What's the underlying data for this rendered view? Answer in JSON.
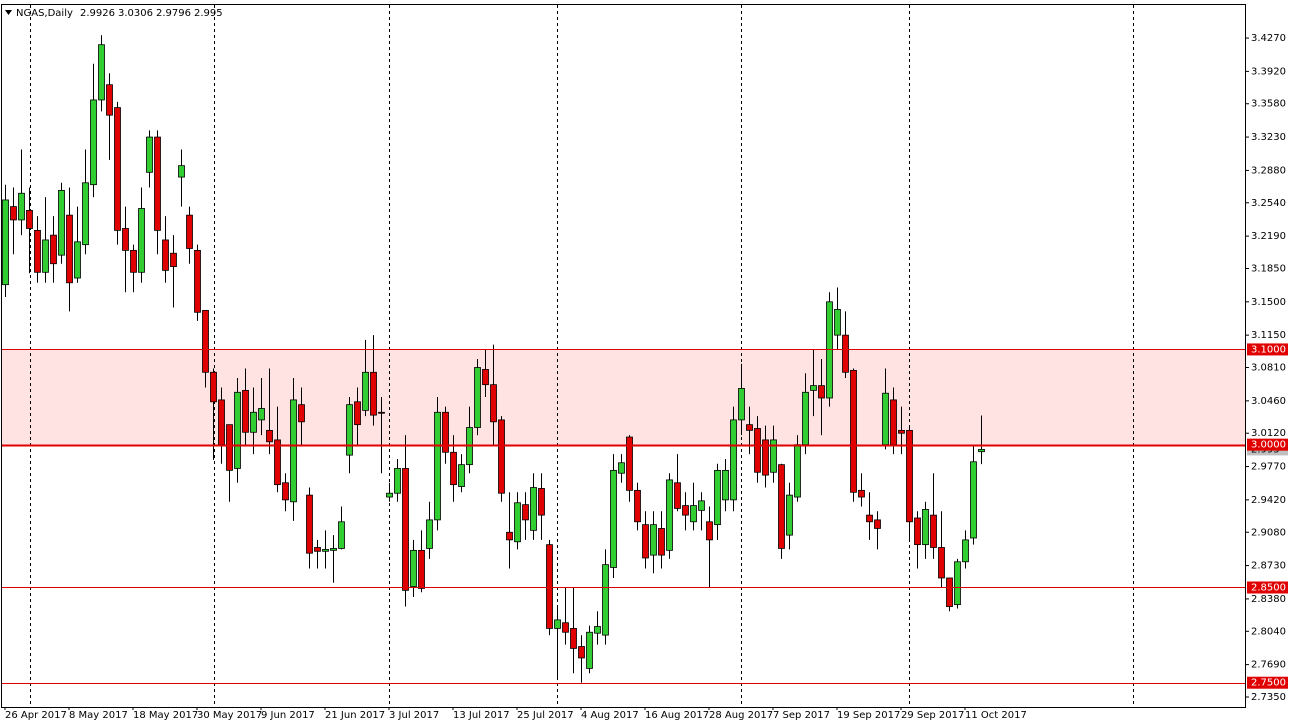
{
  "chart_data": {
    "type": "candlestick",
    "header_symbol": "NGAS,Daily",
    "categories": [
      "26 Apr 2017",
      null,
      null,
      null,
      null,
      null,
      null,
      null,
      "8 May 2017",
      null,
      null,
      null,
      null,
      null,
      null,
      null,
      "18 May 2017",
      null,
      null,
      null,
      null,
      null,
      null,
      null,
      "30 May 2017",
      null,
      null,
      null,
      null,
      null,
      null,
      null,
      "9 Jun 2017",
      null,
      null,
      null,
      null,
      null,
      null,
      null,
      "21 Jun 2017",
      null,
      null,
      null,
      null,
      null,
      null,
      null,
      "3 Jul 2017",
      null,
      null,
      null,
      null,
      null,
      null,
      null,
      "13 Jul 2017",
      null,
      null,
      null,
      null,
      null,
      null,
      null,
      "25 Jul 2017",
      null,
      null,
      null,
      null,
      null,
      null,
      null,
      "4 Aug 2017",
      null,
      null,
      null,
      null,
      null,
      null,
      null,
      "16 Aug 2017",
      null,
      null,
      null,
      null,
      null,
      null,
      null,
      "28 Aug 2017",
      null,
      null,
      null,
      null,
      null,
      null,
      null,
      "7 Sep 2017",
      null,
      null,
      null,
      null,
      null,
      null,
      null,
      "19 Sep 2017",
      null,
      null,
      null,
      null,
      null,
      null,
      null,
      "29 Sep 2017",
      null,
      null,
      null,
      null,
      null,
      null,
      null,
      "11 Oct 2017",
      null,
      null
    ],
    "open": [
      3.168,
      3.25,
      3.236,
      3.246,
      3.225,
      3.181,
      3.22,
      3.199,
      3.241,
      3.175,
      3.21,
      3.273,
      3.362,
      3.378,
      3.354,
      3.227,
      3.204,
      3.181,
      3.286,
      3.323,
      3.215,
      3.201,
      3.281,
      3.241,
      3.204,
      3.141,
      3.076,
      3.047,
      3.021,
      2.975,
      3.057,
      3.013,
      3.026,
      3.015,
      3.005,
      2.96,
      2.94,
      3.042,
      2.947,
      2.892,
      2.888,
      2.889,
      2.891,
      2.989,
      3.045,
      3.036,
      3.076,
      3.034,
      2.945,
      2.949,
      2.975,
      2.851,
      2.889,
      2.891,
      2.921,
      3.034,
      2.992,
      2.956,
      2.979,
      3.018,
      3.079,
      3.063,
      3.026,
      2.908,
      2.898,
      2.937,
      2.91,
      2.954,
      2.895,
      2.807,
      2.813,
      2.807,
      2.788,
      2.765,
      2.802,
      2.8,
      2.871,
      2.97,
      3.008,
      2.952,
      2.916,
      2.884,
      2.912,
      2.889,
      2.96,
      2.936,
      2.919,
      2.931,
      2.919,
      2.916,
      2.942,
      2.942,
      3.026,
      3.021,
      3.017,
      3.005,
      2.971,
      2.979,
      2.905,
      2.945,
      3.0,
      3.057,
      3.062,
      3.049,
      3.115,
      3.115,
      3.078,
      2.952,
      2.926,
      2.921,
      3.0,
      3.047,
      3.015,
      3.015,
      2.923,
      2.895,
      2.926,
      2.892,
      2.86,
      2.832,
      2.877,
      2.902,
      2.9926
    ],
    "high": [
      3.273,
      3.27,
      3.31,
      3.27,
      3.24,
      3.26,
      3.24,
      3.275,
      3.27,
      3.25,
      3.31,
      3.4,
      3.43,
      3.39,
      3.36,
      3.25,
      3.21,
      3.27,
      3.33,
      3.33,
      3.24,
      3.22,
      3.31,
      3.25,
      3.21,
      3.14,
      3.08,
      3.06,
      3.02,
      3.07,
      3.08,
      3.06,
      3.07,
      3.08,
      3.04,
      2.97,
      3.07,
      3.06,
      2.955,
      2.9,
      2.91,
      2.905,
      2.935,
      3.05,
      3.06,
      3.11,
      3.115,
      3.05,
      2.96,
      2.985,
      3.01,
      2.9,
      2.91,
      2.94,
      3.05,
      3.04,
      3.01,
      2.99,
      3.04,
      3.09,
      3.1,
      3.105,
      3.03,
      2.95,
      2.95,
      2.95,
      2.97,
      2.97,
      2.9,
      2.83,
      2.85,
      2.85,
      2.8,
      2.81,
      2.825,
      2.89,
      2.99,
      2.99,
      3.01,
      2.96,
      2.93,
      2.93,
      2.93,
      2.97,
      2.99,
      2.95,
      2.96,
      2.95,
      2.935,
      2.98,
      2.985,
      3.04,
      3.085,
      3.04,
      3.03,
      3.02,
      3.02,
      2.98,
      2.96,
      3.01,
      3.075,
      3.1,
      3.09,
      3.16,
      3.165,
      3.14,
      3.08,
      2.97,
      2.95,
      2.93,
      3.08,
      3.06,
      3.04,
      3.02,
      2.93,
      2.94,
      2.97,
      2.93,
      2.86,
      2.88,
      2.91,
      3.0,
      3.0306
    ],
    "low": [
      3.155,
      3.2,
      3.22,
      3.18,
      3.17,
      3.17,
      3.17,
      3.19,
      3.14,
      3.17,
      3.2,
      3.26,
      3.35,
      3.299,
      3.21,
      3.16,
      3.16,
      3.17,
      3.27,
      3.2,
      3.17,
      3.144,
      3.25,
      3.19,
      3.13,
      3.06,
      2.984,
      2.98,
      2.94,
      2.96,
      3.0,
      2.99,
      3.01,
      2.99,
      2.95,
      2.93,
      2.92,
      3.0,
      2.87,
      2.87,
      2.87,
      2.855,
      2.89,
      2.97,
      3.0,
      3.03,
      3.02,
      2.97,
      2.94,
      2.94,
      2.83,
      2.84,
      2.845,
      2.88,
      2.91,
      2.98,
      2.94,
      2.95,
      2.97,
      3.01,
      3.05,
      3.0,
      2.94,
      2.87,
      2.89,
      2.9,
      2.9,
      2.9,
      2.8,
      2.755,
      2.79,
      2.76,
      2.75,
      2.76,
      2.79,
      2.79,
      2.86,
      2.96,
      2.94,
      2.91,
      2.87,
      2.865,
      2.87,
      2.88,
      2.93,
      2.91,
      2.91,
      2.91,
      2.85,
      2.9,
      2.93,
      2.93,
      3.01,
      2.99,
      2.96,
      2.955,
      2.96,
      2.88,
      2.89,
      2.94,
      2.99,
      3.03,
      3.01,
      3.04,
      3.1,
      3.07,
      2.94,
      2.935,
      2.9,
      2.89,
      2.995,
      2.99,
      2.99,
      2.9,
      2.87,
      2.88,
      2.88,
      2.85,
      2.825,
      2.828,
      2.87,
      2.895,
      2.9796
    ],
    "close": [
      3.257,
      3.236,
      3.264,
      3.227,
      3.181,
      3.215,
      3.19,
      3.267,
      3.17,
      3.213,
      3.275,
      3.362,
      3.42,
      3.346,
      3.225,
      3.204,
      3.181,
      3.248,
      3.323,
      3.225,
      3.183,
      3.187,
      3.293,
      3.206,
      3.139,
      3.076,
      3.045,
      3.0,
      2.973,
      3.055,
      3.013,
      3.034,
      3.038,
      3.003,
      2.958,
      2.942,
      3.047,
      3.024,
      2.886,
      2.888,
      2.89,
      2.891,
      2.919,
      3.042,
      3.021,
      3.076,
      3.031,
      3.033,
      2.949,
      2.975,
      2.847,
      2.889,
      2.849,
      2.921,
      3.034,
      2.992,
      2.958,
      2.979,
      3.018,
      3.081,
      3.063,
      3.024,
      2.949,
      2.9,
      2.939,
      2.921,
      2.955,
      2.926,
      2.807,
      2.816,
      2.803,
      2.786,
      2.776,
      2.803,
      2.809,
      2.874,
      2.973,
      2.981,
      2.952,
      2.919,
      2.881,
      2.916,
      2.884,
      2.963,
      2.933,
      2.926,
      2.936,
      2.941,
      2.9,
      2.973,
      2.973,
      3.026,
      3.059,
      3.015,
      2.971,
      2.968,
      3.005,
      2.891,
      2.947,
      3.0,
      3.055,
      3.062,
      3.049,
      3.15,
      3.142,
      3.076,
      2.95,
      2.945,
      2.919,
      2.912,
      3.054,
      3.0,
      3.012,
      2.919,
      2.895,
      2.932,
      2.892,
      2.86,
      2.83,
      2.877,
      2.9,
      2.982,
      2.995
    ],
    "up_color": "#32cd32",
    "down_color": "#e00000",
    "ylim": [
      2.7245,
      3.4617
    ],
    "yticks": [
      {
        "value": 3.427,
        "label": "3.4270"
      },
      {
        "value": 3.392,
        "label": "3.3920"
      },
      {
        "value": 3.358,
        "label": "3.3580"
      },
      {
        "value": 3.323,
        "label": "3.3230"
      },
      {
        "value": 3.288,
        "label": "3.2880"
      },
      {
        "value": 3.254,
        "label": "3.2540"
      },
      {
        "value": 3.219,
        "label": "3.2190"
      },
      {
        "value": 3.185,
        "label": "3.1850"
      },
      {
        "value": 3.15,
        "label": "3.1500"
      },
      {
        "value": 3.115,
        "label": "3.1150"
      },
      {
        "value": 3.081,
        "label": "3.0810"
      },
      {
        "value": 3.046,
        "label": "3.0460"
      },
      {
        "value": 3.012,
        "label": "3.0120"
      },
      {
        "value": 2.977,
        "label": "2.9770"
      },
      {
        "value": 2.942,
        "label": "2.9420"
      },
      {
        "value": 2.908,
        "label": "2.9080"
      },
      {
        "value": 2.873,
        "label": "2.8730"
      },
      {
        "value": 2.838,
        "label": "2.8380"
      },
      {
        "value": 2.804,
        "label": "2.8040"
      },
      {
        "value": 2.769,
        "label": "2.7690"
      },
      {
        "value": 2.735,
        "label": "2.7350"
      }
    ],
    "hlines": [
      {
        "value": 3.1,
        "label": "3.1000"
      },
      {
        "value": 3.0,
        "label": "3.0000"
      },
      {
        "value": 2.85,
        "label": "2.8500"
      },
      {
        "value": 2.75,
        "label": "2.7500"
      }
    ],
    "hline_color": "#e00000",
    "zone_color": "#ffe2e2",
    "price_label_color": "#c0c0c0"
  }
}
